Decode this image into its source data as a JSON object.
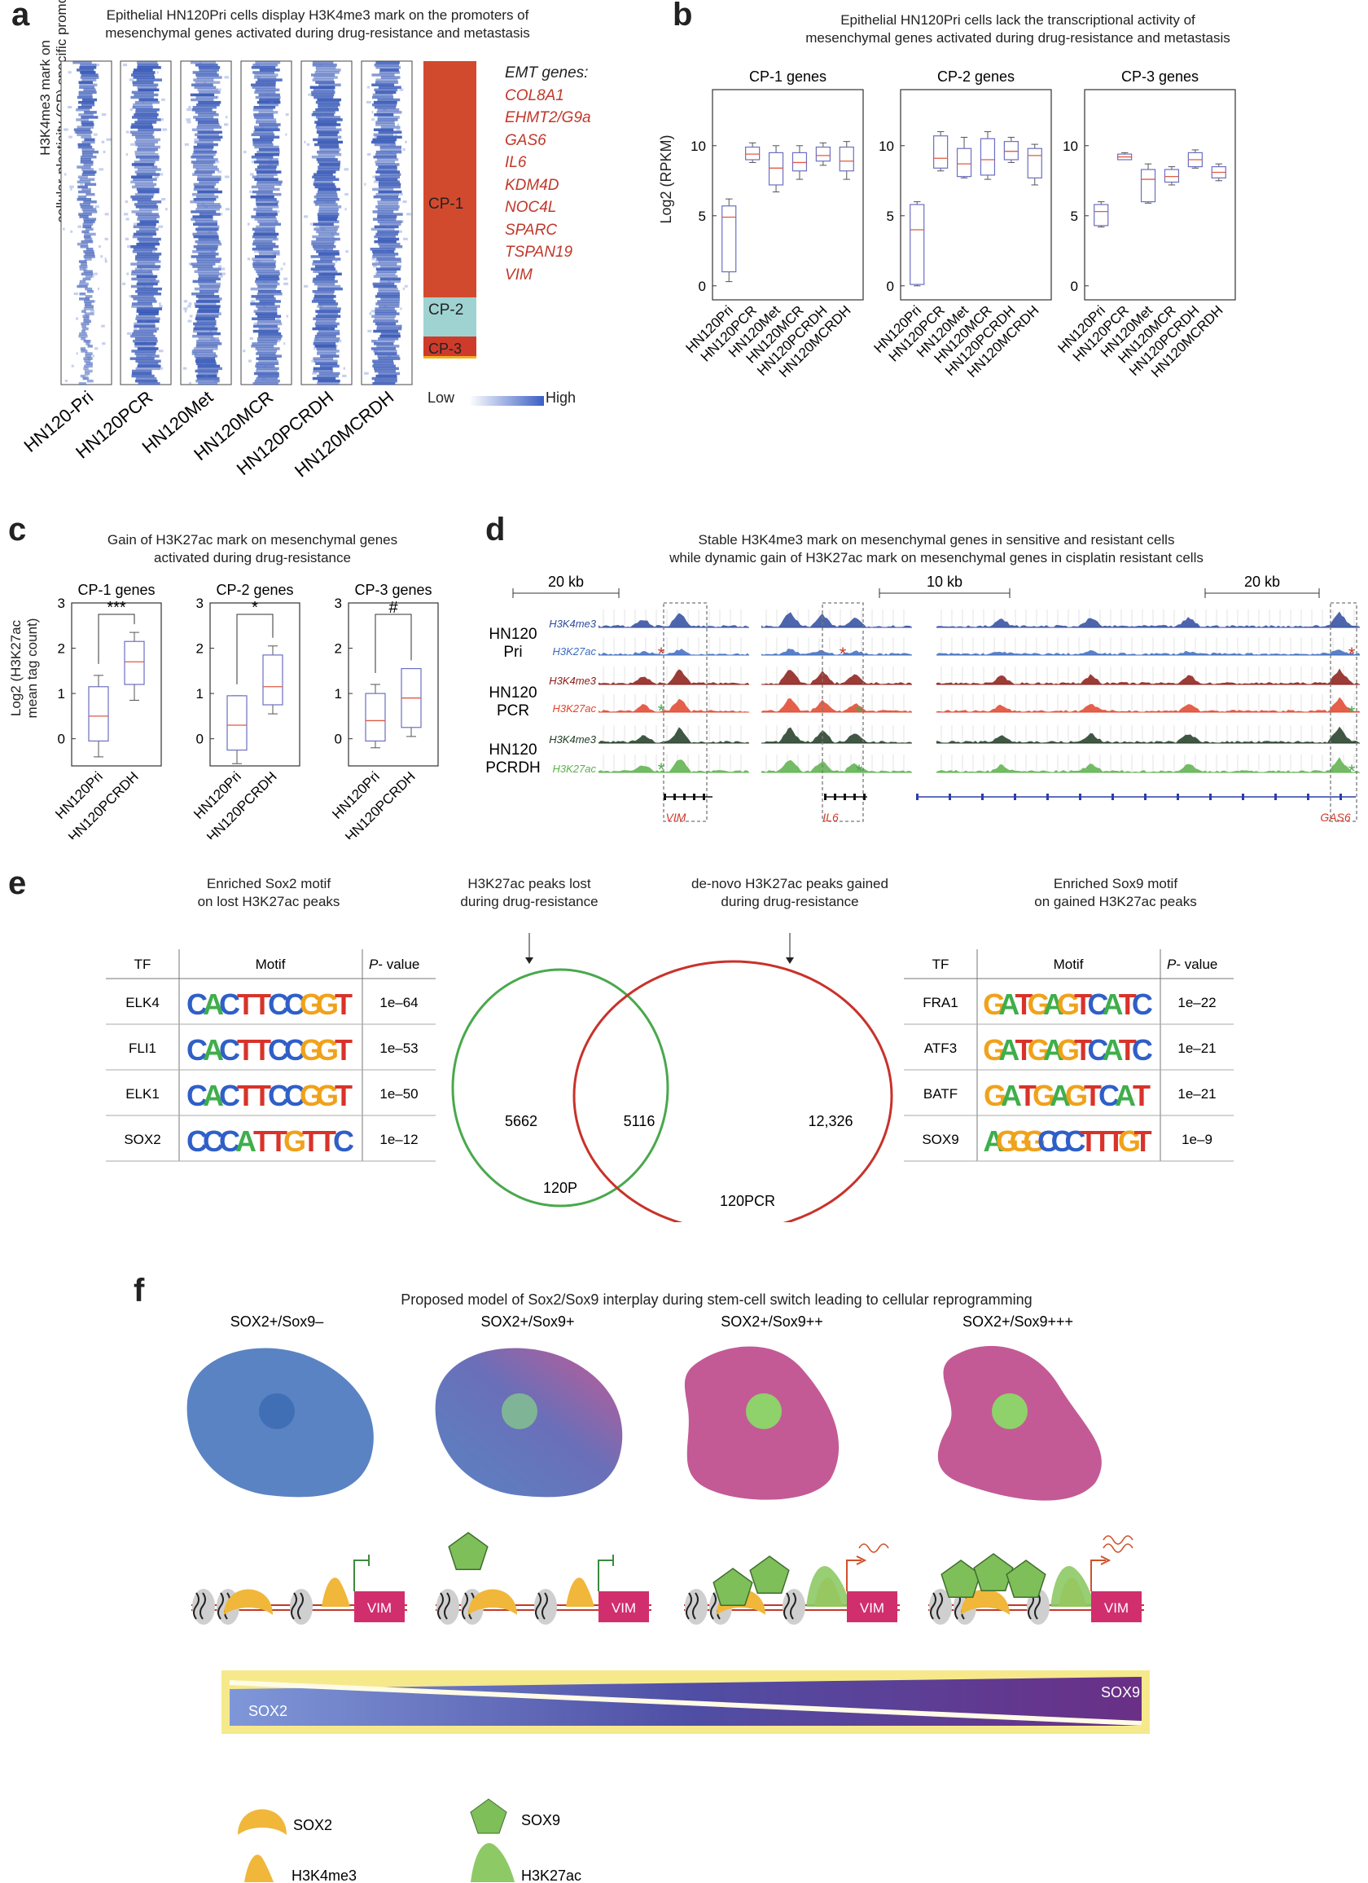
{
  "panels": {
    "a": {
      "letter": "a",
      "title": [
        "Epithelial HN120Pri cells display H3K4me3 mark on the promoters of",
        "mesenchymal genes activated during drug-resistance and metastasis"
      ],
      "ylabel": [
        "H3K4me3 mark on",
        "cellular-plasticity (CP) specific promoters"
      ],
      "samples": [
        "HN120-Pri",
        "HN120PCR",
        "HN120Met",
        "HN120MCR",
        "HN120PCRDH",
        "HN120MCRDH"
      ],
      "clusters": [
        {
          "name": "CP-1",
          "color": "#d24a2e"
        },
        {
          "name": "CP-2",
          "color": "#9fd3d2"
        },
        {
          "name": "CP-3",
          "color": "#cf3b2b"
        }
      ],
      "emt_title": "EMT genes:",
      "emt_genes": [
        "COL8A1",
        "EHMT2/G9a",
        "GAS6",
        "IL6",
        "KDM4D",
        "NOC4L",
        "SPARC",
        "TSPAN19",
        "VIM"
      ],
      "scale_low": "Low",
      "scale_high": "High"
    },
    "b": {
      "letter": "b",
      "title": [
        "Epithelial HN120Pri cells lack the transcriptional activity of",
        "mesenchymal genes activated during drug-resistance and metastasis"
      ],
      "ylabel": "Log2 (RPKM)"
    },
    "c": {
      "letter": "c",
      "title": [
        "Gain of H3K27ac mark on mesenchymal genes",
        "activated during drug-resistance"
      ],
      "ylabel": [
        "Log2 (H3K27ac",
        "mean tag count)"
      ]
    },
    "d": {
      "letter": "d",
      "title": [
        "Stable H3K4me3 mark on mesenchymal genes in sensitive and resistant cells",
        "while dynamic gain of H3K27ac mark on mesenchymal genes in cisplatin resistant cells"
      ],
      "scales": [
        "20 kb",
        "10 kb",
        "20 kb"
      ],
      "groups": [
        [
          "HN120",
          "Pri"
        ],
        [
          "HN120",
          "PCR"
        ],
        [
          "HN120",
          "PCRDH"
        ]
      ],
      "tracks": [
        {
          "label": "H3K4me3",
          "color": "#2e4a9e"
        },
        {
          "label": "H3K27ac",
          "color": "#3c6bc0"
        },
        {
          "label": "H3K4me3",
          "color": "#8b1a14"
        },
        {
          "label": "H3K27ac",
          "color": "#e0442c"
        },
        {
          "label": "H3K4me3",
          "color": "#1e3a22"
        },
        {
          "label": "H3K27ac",
          "color": "#5ab04a"
        }
      ],
      "genes": [
        "VIM",
        "IL6",
        "GAS6"
      ]
    },
    "e": {
      "letter": "e",
      "left_caption": [
        "Enriched Sox2 motif",
        "on lost H3K27ac peaks"
      ],
      "mid_left_caption": [
        "H3K27ac peaks lost",
        "during drug-resistance"
      ],
      "mid_right_caption": [
        "de-novo H3K27ac peaks gained",
        "during drug-resistance"
      ],
      "right_caption": [
        "Enriched Sox9 motif",
        "on gained H3K27ac peaks"
      ],
      "table_headers": [
        "TF",
        "Motif",
        "P",
        "- value"
      ],
      "left_table": [
        {
          "tf": "ELK4",
          "motif": "CACTTCCGGT",
          "p": "1e–64"
        },
        {
          "tf": "FLI1",
          "motif": "CACTTCCGGT",
          "p": "1e–53"
        },
        {
          "tf": "ELK1",
          "motif": "CACTTCCGGT",
          "p": "1e–50"
        },
        {
          "tf": "SOX2",
          "motif": "CCCATTGTTC",
          "p": "1e–12"
        }
      ],
      "right_table": [
        {
          "tf": "FRA1",
          "motif": "GATGAGTCATC",
          "p": "1e–22"
        },
        {
          "tf": "ATF3",
          "motif": "GATGAGTCATC",
          "p": "1e–21"
        },
        {
          "tf": "BATF",
          "motif": "GATGAGTCAT",
          "p": "1e–21"
        },
        {
          "tf": "SOX9",
          "motif": "AGGGCCCTTTGT",
          "p": "1e–9"
        }
      ],
      "venn": {
        "left_only": "5662",
        "overlap": "5116",
        "right_only": "12,326",
        "left_label": "120P",
        "right_label": "120PCR",
        "left_color": "#4aa84c",
        "right_color": "#c8322b"
      }
    },
    "f": {
      "letter": "f",
      "title": "Proposed model of Sox2/Sox9 interplay during stem-cell switch leading to cellular reprogramming",
      "states": [
        "SOX2+/Sox9–",
        "SOX2+/Sox9+",
        "SOX2+/Sox9++",
        "SOX2+/Sox9+++"
      ],
      "gene_label": "VIM",
      "gradient_left": "SOX2",
      "gradient_right": "SOX9",
      "legend": [
        "SOX2",
        "SOX9",
        "H3K4me3",
        "H3K27ac"
      ]
    }
  },
  "chart_data": [
    {
      "type": "box",
      "panel": "b",
      "title": "CP-1 genes",
      "categories": [
        "HN120Pri",
        "HN120PCR",
        "HN120Met",
        "HN120MCR",
        "HN120PCRDH",
        "HN120MCRDH"
      ],
      "ylabel": "Log2 (RPKM)",
      "yticks": [
        0,
        5,
        10
      ],
      "ylim": [
        -1,
        14
      ],
      "boxes": [
        {
          "min": 0.3,
          "q1": 1.0,
          "median": 4.9,
          "q3": 5.7,
          "max": 6.2
        },
        {
          "min": 8.8,
          "q1": 9.0,
          "median": 9.4,
          "q3": 9.9,
          "max": 10.2
        },
        {
          "min": 6.7,
          "q1": 7.2,
          "median": 8.4,
          "q3": 9.5,
          "max": 10.0
        },
        {
          "min": 7.6,
          "q1": 8.2,
          "median": 8.8,
          "q3": 9.5,
          "max": 10.0
        },
        {
          "min": 8.6,
          "q1": 8.9,
          "median": 9.3,
          "q3": 9.9,
          "max": 10.2
        },
        {
          "min": 7.6,
          "q1": 8.2,
          "median": 8.9,
          "q3": 9.9,
          "max": 10.3
        }
      ]
    },
    {
      "type": "box",
      "panel": "b",
      "title": "CP-2 genes",
      "categories": [
        "HN120Pri",
        "HN120PCR",
        "HN120Met",
        "HN120MCR",
        "HN120PCRDH",
        "HN120MCRDH"
      ],
      "yticks": [
        0,
        5,
        10
      ],
      "ylim": [
        -1,
        14
      ],
      "boxes": [
        {
          "min": 0.0,
          "q1": 0.1,
          "median": 4.0,
          "q3": 5.8,
          "max": 6.0
        },
        {
          "min": 8.2,
          "q1": 8.4,
          "median": 9.1,
          "q3": 10.7,
          "max": 11.0
        },
        {
          "min": 7.7,
          "q1": 7.8,
          "median": 8.7,
          "q3": 9.8,
          "max": 10.6
        },
        {
          "min": 7.6,
          "q1": 7.9,
          "median": 9.0,
          "q3": 10.5,
          "max": 11.0
        },
        {
          "min": 8.8,
          "q1": 9.0,
          "median": 9.6,
          "q3": 10.3,
          "max": 10.6
        },
        {
          "min": 7.2,
          "q1": 7.7,
          "median": 9.3,
          "q3": 9.8,
          "max": 10.1
        }
      ]
    },
    {
      "type": "box",
      "panel": "b",
      "title": "CP-3 genes",
      "categories": [
        "HN120Pri",
        "HN120PCR",
        "HN120Met",
        "HN120MCR",
        "HN120PCRDH",
        "HN120MCRDH"
      ],
      "yticks": [
        0,
        5,
        10
      ],
      "ylim": [
        -1,
        14
      ],
      "boxes": [
        {
          "min": 4.2,
          "q1": 4.3,
          "median": 5.3,
          "q3": 5.8,
          "max": 6.0
        },
        {
          "min": 9.0,
          "q1": 9.0,
          "median": 9.2,
          "q3": 9.4,
          "max": 9.5
        },
        {
          "min": 5.9,
          "q1": 6.0,
          "median": 7.6,
          "q3": 8.3,
          "max": 8.7
        },
        {
          "min": 7.2,
          "q1": 7.4,
          "median": 7.8,
          "q3": 8.3,
          "max": 8.5
        },
        {
          "min": 8.4,
          "q1": 8.5,
          "median": 9.0,
          "q3": 9.5,
          "max": 9.7
        },
        {
          "min": 7.5,
          "q1": 7.7,
          "median": 8.1,
          "q3": 8.5,
          "max": 8.7
        }
      ]
    },
    {
      "type": "box",
      "panel": "c",
      "title": "CP-1 genes",
      "categories": [
        "HN120Pri",
        "HN120PCRDH"
      ],
      "yticks": [
        0,
        1,
        2,
        3
      ],
      "ylim": [
        -0.6,
        3
      ],
      "significance": "***",
      "boxes": [
        {
          "min": -0.4,
          "q1": -0.05,
          "median": 0.5,
          "q3": 1.15,
          "max": 1.4
        },
        {
          "min": 0.85,
          "q1": 1.2,
          "median": 1.7,
          "q3": 2.15,
          "max": 2.35
        }
      ]
    },
    {
      "type": "box",
      "panel": "c",
      "title": "CP-2 genes",
      "categories": [
        "HN120Pri",
        "HN120PCRDH"
      ],
      "yticks": [
        0,
        1,
        2,
        3
      ],
      "ylim": [
        -0.6,
        3
      ],
      "significance": "*",
      "boxes": [
        {
          "min": -0.55,
          "q1": -0.25,
          "median": 0.3,
          "q3": 0.95,
          "max": 0.95
        },
        {
          "min": 0.55,
          "q1": 0.75,
          "median": 1.15,
          "q3": 1.85,
          "max": 2.05
        }
      ]
    },
    {
      "type": "box",
      "panel": "c",
      "title": "CP-3 genes",
      "categories": [
        "HN120Pri",
        "HN120PCRDH"
      ],
      "yticks": [
        0,
        1,
        2,
        3
      ],
      "ylim": [
        -0.6,
        3
      ],
      "significance": "#",
      "boxes": [
        {
          "min": -0.2,
          "q1": -0.05,
          "median": 0.4,
          "q3": 1.0,
          "max": 1.2
        },
        {
          "min": 0.05,
          "q1": 0.25,
          "median": 0.9,
          "q3": 1.55,
          "max": 1.55
        }
      ]
    }
  ]
}
